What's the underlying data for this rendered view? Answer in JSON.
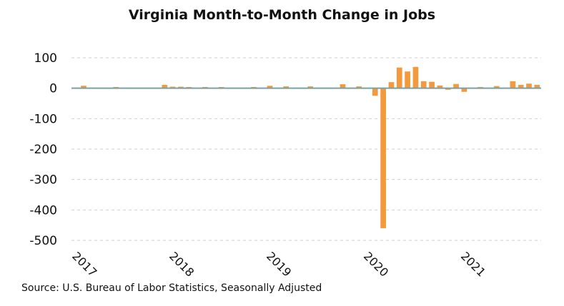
{
  "chart_data": {
    "type": "bar",
    "title": "Virginia Month-to-Month Change in Jobs",
    "source": "Source: U.S. Bureau of Labor Statistics, Seasonally Adjusted",
    "ylim": [
      -500,
      100
    ],
    "yticks": [
      "100",
      "0",
      "-100",
      "-200",
      "-300",
      "-400",
      "-500"
    ],
    "ytick_values": [
      100,
      0,
      -100,
      -200,
      -300,
      -400,
      -500
    ],
    "xticks": [
      {
        "label": "2017",
        "month_index": 0
      },
      {
        "label": "2018",
        "month_index": 12
      },
      {
        "label": "2019",
        "month_index": 24
      },
      {
        "label": "2020",
        "month_index": 36
      },
      {
        "label": "2021",
        "month_index": 48
      }
    ],
    "grid": true,
    "bar_color": "#f59a3c",
    "baseline_color": "#7aa0a2",
    "series": [
      {
        "values": [
          2,
          8,
          1,
          0,
          1,
          4,
          1,
          1,
          1,
          1,
          1,
          11,
          5,
          5,
          4,
          1,
          4,
          1,
          4,
          1,
          1,
          1,
          4,
          1,
          8,
          1,
          6,
          1,
          1,
          6,
          1,
          1,
          1,
          13,
          1,
          6,
          1,
          -25,
          -460,
          20,
          68,
          55,
          70,
          23,
          21,
          9,
          -5,
          14,
          -12,
          1,
          4,
          1,
          7,
          1,
          23,
          11,
          15,
          11
        ]
      }
    ]
  }
}
